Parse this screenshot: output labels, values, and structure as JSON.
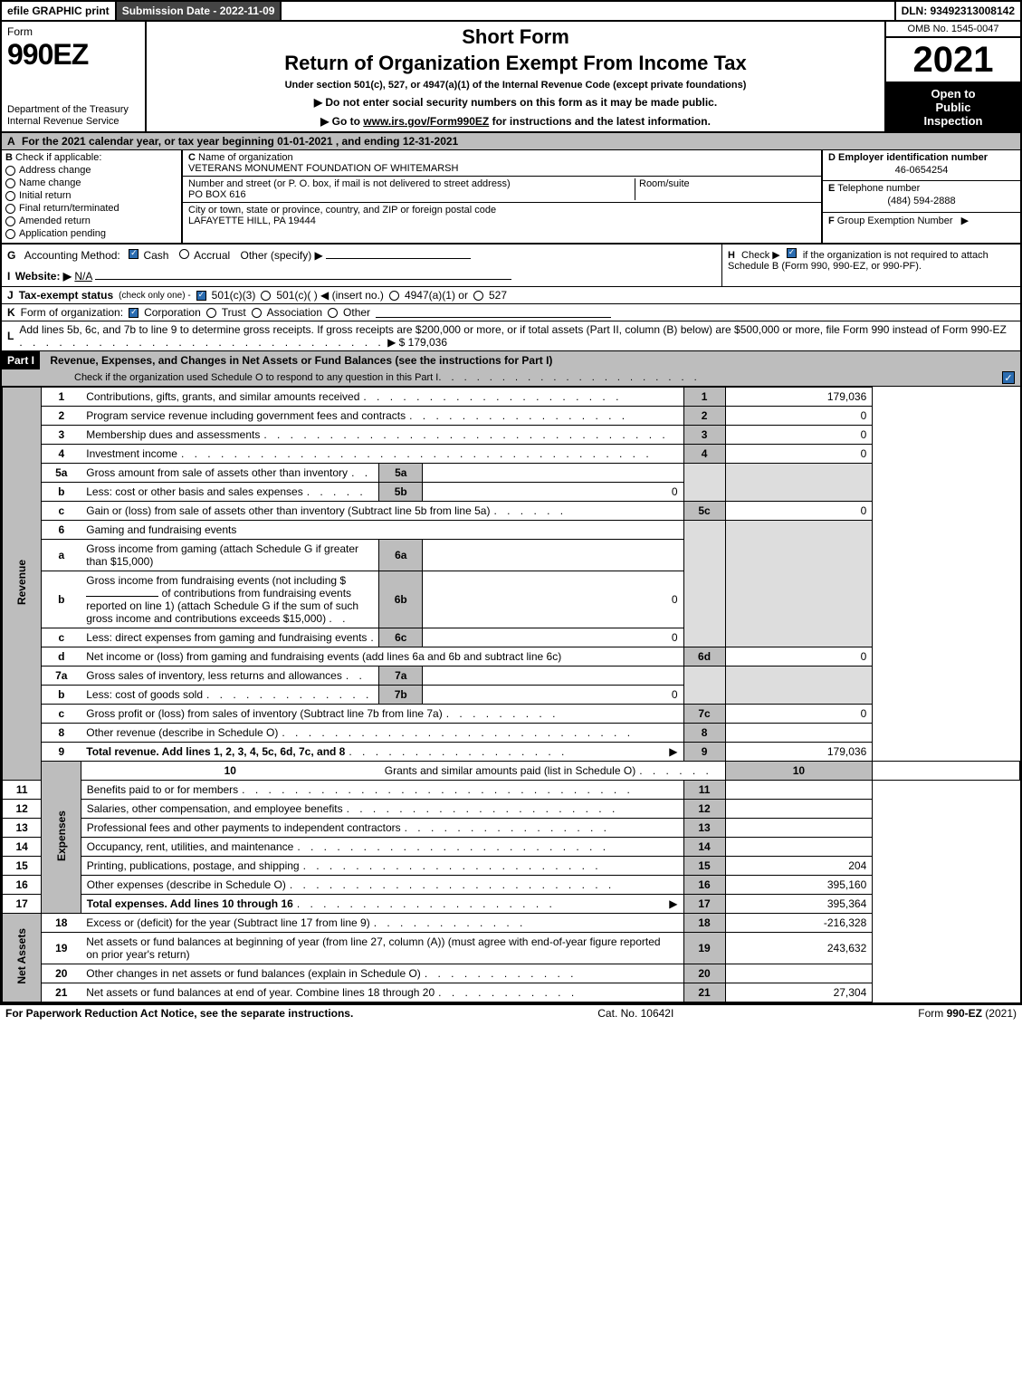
{
  "top_bar": {
    "efile": "efile GRAPHIC print",
    "submission": "Submission Date - 2022-11-09",
    "dln": "DLN: 93492313008142"
  },
  "header_left": {
    "form_label": "Form",
    "form_number": "990EZ",
    "dept": "Department of the Treasury\nInternal Revenue Service"
  },
  "header_center": {
    "short_form": "Short Form",
    "title": "Return of Organization Exempt From Income Tax",
    "subtitle": "Under section 501(c), 527, or 4947(a)(1) of the Internal Revenue Code (except private foundations)",
    "note1": "Do not enter social security numbers on this form as it may be made public.",
    "note2_prefix": "Go to ",
    "note2_link": "www.irs.gov/Form990EZ",
    "note2_suffix": " for instructions and the latest information."
  },
  "header_right": {
    "omb": "OMB No. 1545-0047",
    "year": "2021",
    "inspection_l1": "Open to",
    "inspection_l2": "Public",
    "inspection_l3": "Inspection"
  },
  "row_a": {
    "prefix": "A",
    "text": "For the 2021 calendar year, or tax year beginning 01-01-2021 , and ending 12-31-2021"
  },
  "section_b": {
    "label": "B",
    "heading": "Check if applicable:",
    "items": [
      {
        "label": "Address change",
        "checked": false
      },
      {
        "label": "Name change",
        "checked": false
      },
      {
        "label": "Initial return",
        "checked": false
      },
      {
        "label": "Final return/terminated",
        "checked": false
      },
      {
        "label": "Amended return",
        "checked": false
      },
      {
        "label": "Application pending",
        "checked": false
      }
    ]
  },
  "section_c": {
    "name_lbl_prefix": "C",
    "name_lbl": "Name of organization",
    "name_val": "VETERANS MONUMENT FOUNDATION OF WHITEMARSH",
    "street_lbl": "Number and street (or P. O. box, if mail is not delivered to street address)",
    "room_lbl": "Room/suite",
    "street_val": "PO BOX 616",
    "city_lbl": "City or town, state or province, country, and ZIP or foreign postal code",
    "city_val": "LAFAYETTE HILL, PA  19444"
  },
  "section_d": {
    "ein_lbl_prefix": "D",
    "ein_lbl": "Employer identification number",
    "ein_val": "46-0654254",
    "phone_lbl_prefix": "E",
    "phone_lbl": "Telephone number",
    "phone_val": "(484) 594-2888",
    "group_lbl_prefix": "F",
    "group_lbl": "Group Exemption Number",
    "group_arrow": "▶"
  },
  "row_g": {
    "prefix": "G",
    "label": "Accounting Method:",
    "cash_checked": true,
    "cash": "Cash",
    "accrual_checked": false,
    "accrual": "Accrual",
    "other": "Other (specify) ▶"
  },
  "row_h": {
    "prefix": "H",
    "text_pre": "Check ▶",
    "checked": true,
    "text_post": "if the organization is not required to attach Schedule B (Form 990, 990-EZ, or 990-PF)."
  },
  "row_i": {
    "prefix": "I",
    "label": "Website: ▶",
    "val": "N/A"
  },
  "row_j": {
    "prefix": "J",
    "label": "Tax-exempt status",
    "sub": "(check only one) -",
    "c3_checked": true,
    "c3": "501(c)(3)",
    "c_checked": false,
    "c_blank": "501(c)(  ) ◀ (insert no.)",
    "a1_checked": false,
    "a1": "4947(a)(1) or",
    "s527_checked": false,
    "s527": "527"
  },
  "row_k": {
    "prefix": "K",
    "label": "Form of organization:",
    "corp_checked": true,
    "corp": "Corporation",
    "trust_checked": false,
    "trust": "Trust",
    "assoc_checked": false,
    "assoc": "Association",
    "other_checked": false,
    "other": "Other"
  },
  "row_l": {
    "prefix": "L",
    "text": "Add lines 5b, 6c, and 7b to line 9 to determine gross receipts. If gross receipts are $200,000 or more, or if total assets (Part II, column (B) below) are $500,000 or more, file Form 990 instead of Form 990-EZ",
    "dots": "..............................",
    "arrow": "▶",
    "amount": "$ 179,036"
  },
  "part1": {
    "header": "Part I",
    "title": "Revenue, Expenses, and Changes in Net Assets or Fund Balances (see the instructions for Part I)",
    "subtitle": "Check if the organization used Schedule O to respond to any question in this Part I",
    "sub_checked": true
  },
  "side_labels": {
    "revenue": "Revenue",
    "expenses": "Expenses",
    "net_assets": "Net Assets"
  },
  "lines": {
    "l1": {
      "num": "1",
      "desc": "Contributions, gifts, grants, and similar amounts received",
      "col": "1",
      "val": "179,036"
    },
    "l2": {
      "num": "2",
      "desc": "Program service revenue including government fees and contracts",
      "col": "2",
      "val": "0"
    },
    "l3": {
      "num": "3",
      "desc": "Membership dues and assessments",
      "col": "3",
      "val": "0"
    },
    "l4": {
      "num": "4",
      "desc": "Investment income",
      "col": "4",
      "val": "0"
    },
    "l5a": {
      "num": "5a",
      "desc": "Gross amount from sale of assets other than inventory",
      "sub": "5a",
      "subval": ""
    },
    "l5b": {
      "num": "b",
      "desc": "Less: cost or other basis and sales expenses",
      "sub": "5b",
      "subval": "0"
    },
    "l5c": {
      "num": "c",
      "desc": "Gain or (loss) from sale of assets other than inventory (Subtract line 5b from line 5a)",
      "col": "5c",
      "val": "0"
    },
    "l6": {
      "num": "6",
      "desc": "Gaming and fundraising events"
    },
    "l6a": {
      "num": "a",
      "desc": "Gross income from gaming (attach Schedule G if greater than $15,000)",
      "sub": "6a",
      "subval": ""
    },
    "l6b": {
      "num": "b",
      "desc1": "Gross income from fundraising events (not including $",
      "desc1b": "of contributions from fundraising events reported on line 1) (attach Schedule G if the sum of such gross income and contributions exceeds $15,000)",
      "sub": "6b",
      "subval": "0"
    },
    "l6c": {
      "num": "c",
      "desc": "Less: direct expenses from gaming and fundraising events",
      "sub": "6c",
      "subval": "0"
    },
    "l6d": {
      "num": "d",
      "desc": "Net income or (loss) from gaming and fundraising events (add lines 6a and 6b and subtract line 6c)",
      "col": "6d",
      "val": "0"
    },
    "l7a": {
      "num": "7a",
      "desc": "Gross sales of inventory, less returns and allowances",
      "sub": "7a",
      "subval": ""
    },
    "l7b": {
      "num": "b",
      "desc": "Less: cost of goods sold",
      "sub": "7b",
      "subval": "0"
    },
    "l7c": {
      "num": "c",
      "desc": "Gross profit or (loss) from sales of inventory (Subtract line 7b from line 7a)",
      "col": "7c",
      "val": "0"
    },
    "l8": {
      "num": "8",
      "desc": "Other revenue (describe in Schedule O)",
      "col": "8",
      "val": ""
    },
    "l9": {
      "num": "9",
      "desc": "Total revenue. Add lines 1, 2, 3, 4, 5c, 6d, 7c, and 8",
      "arrow": "▶",
      "col": "9",
      "val": "179,036"
    },
    "l10": {
      "num": "10",
      "desc": "Grants and similar amounts paid (list in Schedule O)",
      "col": "10",
      "val": ""
    },
    "l11": {
      "num": "11",
      "desc": "Benefits paid to or for members",
      "col": "11",
      "val": ""
    },
    "l12": {
      "num": "12",
      "desc": "Salaries, other compensation, and employee benefits",
      "col": "12",
      "val": ""
    },
    "l13": {
      "num": "13",
      "desc": "Professional fees and other payments to independent contractors",
      "col": "13",
      "val": ""
    },
    "l14": {
      "num": "14",
      "desc": "Occupancy, rent, utilities, and maintenance",
      "col": "14",
      "val": ""
    },
    "l15": {
      "num": "15",
      "desc": "Printing, publications, postage, and shipping",
      "col": "15",
      "val": "204"
    },
    "l16": {
      "num": "16",
      "desc": "Other expenses (describe in Schedule O)",
      "col": "16",
      "val": "395,160"
    },
    "l17": {
      "num": "17",
      "desc": "Total expenses. Add lines 10 through 16",
      "arrow": "▶",
      "col": "17",
      "val": "395,364"
    },
    "l18": {
      "num": "18",
      "desc": "Excess or (deficit) for the year (Subtract line 17 from line 9)",
      "col": "18",
      "val": "-216,328"
    },
    "l19": {
      "num": "19",
      "desc": "Net assets or fund balances at beginning of year (from line 27, column (A)) (must agree with end-of-year figure reported on prior year's return)",
      "col": "19",
      "val": "243,632"
    },
    "l20": {
      "num": "20",
      "desc": "Other changes in net assets or fund balances (explain in Schedule O)",
      "col": "20",
      "val": ""
    },
    "l21": {
      "num": "21",
      "desc": "Net assets or fund balances at end of year. Combine lines 18 through 20",
      "col": "21",
      "val": "27,304"
    }
  },
  "footer": {
    "left": "For Paperwork Reduction Act Notice, see the separate instructions.",
    "mid": "Cat. No. 10642I",
    "right_pre": "Form ",
    "right_bold": "990-EZ",
    "right_suf": " (2021)"
  },
  "colors": {
    "dark_bg": "#444444",
    "gray_bg": "#bdbdbd",
    "shade_bg": "#dddddd",
    "check_blue": "#2b6cb0"
  }
}
